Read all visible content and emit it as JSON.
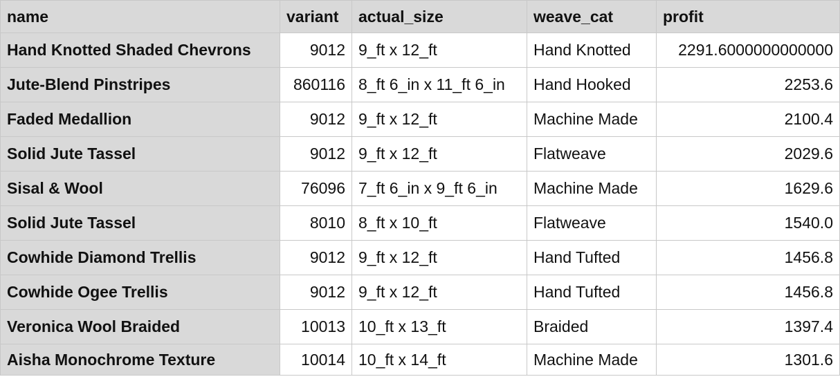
{
  "columns": [
    "name",
    "variant",
    "actual_size",
    "weave_cat",
    "profit"
  ],
  "rows": [
    [
      "Hand Knotted Shaded Chevrons",
      "9012",
      "9_ft x 12_ft",
      "Hand Knotted",
      "2291.6000000000000"
    ],
    [
      "Jute-Blend Pinstripes",
      "860116",
      "8_ft 6_in x 11_ft 6_in",
      "Hand Hooked",
      "2253.6"
    ],
    [
      "Faded Medallion",
      "9012",
      "9_ft x 12_ft",
      "Machine Made",
      "2100.4"
    ],
    [
      "Solid Jute Tassel",
      "9012",
      "9_ft x 12_ft",
      "Flatweave",
      "2029.6"
    ],
    [
      "Sisal & Wool",
      "76096",
      "7_ft 6_in x 9_ft 6_in",
      "Machine Made",
      "1629.6"
    ],
    [
      "Solid Jute Tassel",
      "8010",
      "8_ft x 10_ft",
      "Flatweave",
      "1540.0"
    ],
    [
      "Cowhide Diamond Trellis",
      "9012",
      "9_ft x 12_ft",
      "Hand Tufted",
      "1456.8"
    ],
    [
      "Cowhide Ogee Trellis",
      "9012",
      "9_ft x 12_ft",
      "Hand Tufted",
      "1456.8"
    ],
    [
      "Veronica Wool Braided",
      "10013",
      "10_ft x 13_ft",
      "Braided",
      "1397.4"
    ],
    [
      "Aisha Monochrome Texture",
      "10014",
      "10_ft x 14_ft",
      "Machine Made",
      "1301.6"
    ]
  ],
  "colors": {
    "header_bg": "#d9d9d9",
    "cell_bg": "#ffffff",
    "grid_line": "#c8c8c8",
    "text": "#111111"
  }
}
